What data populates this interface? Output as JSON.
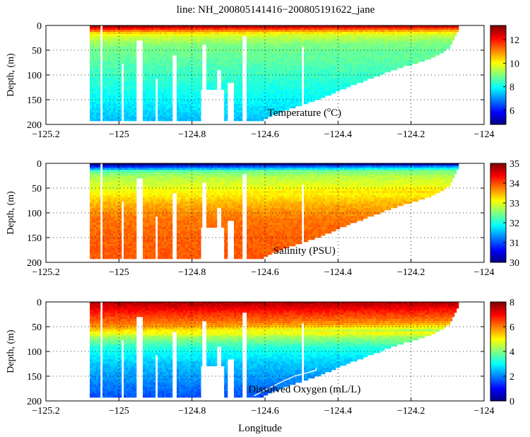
{
  "title": "line: NH_200805141416−200805191622_jane",
  "colors": {
    "white_gaps": "#ffffff",
    "axis": "#000000",
    "contour": "#ffffff"
  },
  "chart_data": [
    {
      "type": "heatmap",
      "id": "temperature",
      "annotation": "Temperature (°C)",
      "annotation_parts": {
        "lead": "Temperature (",
        "sup": "o",
        "tail": "C)"
      },
      "xlabel": "",
      "ylabel": "Depth, (m)",
      "xlim": [
        -125.2,
        -124.0
      ],
      "ylim": [
        200,
        0
      ],
      "xticks": [
        -125.2,
        -125,
        -124.8,
        -124.6,
        -124.4,
        -124.2,
        -124
      ],
      "xtick_labels": [
        "−125.2",
        "−125",
        "−124.8",
        "−124.6",
        "−124.4",
        "−124.2",
        "−124"
      ],
      "yticks": [
        0,
        50,
        100,
        150,
        200
      ],
      "ytick_labels": [
        "0",
        "50",
        "100",
        "150",
        "200"
      ],
      "grid": true,
      "colormap": "jet",
      "clim": [
        4.8,
        13.2
      ],
      "colorbar_ticks": [
        6,
        8,
        10,
        12
      ],
      "colorbar_tick_labels": [
        "6",
        "8",
        "10",
        "12"
      ],
      "data_extent_x": [
        -125.08,
        -124.07
      ],
      "bottom_depth_profile": {
        "lon": [
          -125.08,
          -124.76,
          -124.62,
          -124.55,
          -124.45,
          -124.35,
          -124.25,
          -124.15,
          -124.1,
          -124.07
        ],
        "depth": [
          192,
          192,
          192,
          170,
          145,
          115,
          88,
          65,
          45,
          2
        ]
      },
      "profile": {
        "depth": [
          0,
          8,
          20,
          40,
          70,
          100,
          150,
          192
        ],
        "value": [
          12.6,
          11.0,
          9.7,
          9.0,
          8.7,
          8.4,
          7.9,
          7.4
        ]
      },
      "contour": null
    },
    {
      "type": "heatmap",
      "id": "salinity",
      "annotation": "Salinity (PSU)",
      "xlabel": "",
      "ylabel": "Depth, (m)",
      "xlim": [
        -125.2,
        -124.0
      ],
      "ylim": [
        200,
        0
      ],
      "xticks": [
        -125.2,
        -125,
        -124.8,
        -124.6,
        -124.4,
        -124.2,
        -124
      ],
      "xtick_labels": [
        "−125.2",
        "−125",
        "−124.8",
        "−124.6",
        "−124.4",
        "−124.2",
        "−124"
      ],
      "yticks": [
        0,
        50,
        100,
        150,
        200
      ],
      "ytick_labels": [
        "0",
        "50",
        "100",
        "150",
        "200"
      ],
      "grid": true,
      "colormap": "jet",
      "clim": [
        30,
        35
      ],
      "colorbar_ticks": [
        30,
        31,
        32,
        33,
        34,
        35
      ],
      "colorbar_tick_labels": [
        "30",
        "31",
        "32",
        "33",
        "34",
        "35"
      ],
      "data_extent_x": [
        -125.08,
        -124.07
      ],
      "bottom_depth_profile": {
        "lon": [
          -125.08,
          -124.76,
          -124.62,
          -124.55,
          -124.45,
          -124.35,
          -124.25,
          -124.15,
          -124.1,
          -124.07
        ],
        "depth": [
          192,
          192,
          192,
          170,
          145,
          115,
          88,
          65,
          45,
          2
        ]
      },
      "profile": {
        "depth": [
          0,
          5,
          15,
          30,
          50,
          80,
          110,
          150,
          192
        ],
        "value": [
          30.2,
          31.3,
          32.4,
          32.8,
          33.0,
          33.5,
          33.8,
          33.9,
          33.95
        ]
      },
      "contour": null
    },
    {
      "type": "heatmap",
      "id": "dissolved_oxygen",
      "annotation": "Dissolved Oxygen (mL/L)",
      "xlabel": "Longitude",
      "ylabel": "Depth, (m)",
      "xlim": [
        -125.2,
        -124.0
      ],
      "ylim": [
        200,
        0
      ],
      "xticks": [
        -125.2,
        -125,
        -124.8,
        -124.6,
        -124.4,
        -124.2,
        -124
      ],
      "xtick_labels": [
        "−125.2",
        "−125",
        "−124.8",
        "−124.6",
        "−124.4",
        "−124.2",
        "−124"
      ],
      "yticks": [
        0,
        50,
        100,
        150,
        200
      ],
      "ytick_labels": [
        "0",
        "50",
        "100",
        "150",
        "200"
      ],
      "grid": true,
      "colormap": "jet",
      "clim": [
        0,
        8
      ],
      "colorbar_ticks": [
        0,
        2,
        4,
        6,
        8
      ],
      "colorbar_tick_labels": [
        "0",
        "2",
        "4",
        "6",
        "8"
      ],
      "data_extent_x": [
        -125.08,
        -124.07
      ],
      "bottom_depth_profile": {
        "lon": [
          -125.08,
          -124.76,
          -124.62,
          -124.55,
          -124.45,
          -124.35,
          -124.25,
          -124.15,
          -124.1,
          -124.07
        ],
        "depth": [
          192,
          192,
          192,
          170,
          145,
          115,
          88,
          65,
          45,
          2
        ]
      },
      "profile": {
        "depth": [
          0,
          20,
          50,
          70,
          90,
          120,
          150,
          192
        ],
        "value": [
          7.6,
          6.8,
          5.8,
          4.2,
          3.3,
          2.6,
          2.2,
          1.6
        ]
      },
      "contour": {
        "level": 1.4,
        "lon": [
          -124.63,
          -124.6,
          -124.55,
          -124.52,
          -124.48,
          -124.46,
          -124.46
        ],
        "depth": [
          190,
          178,
          160,
          150,
          142,
          138,
          133
        ]
      }
    }
  ]
}
